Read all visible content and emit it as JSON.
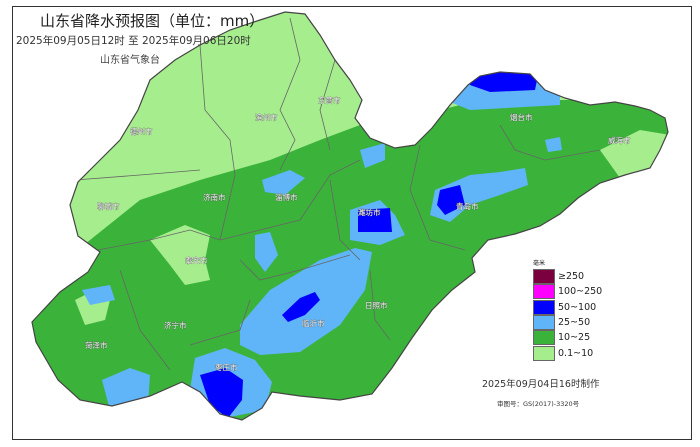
{
  "title": "山东省降水预报图（单位：mm）",
  "period": "2025年09月05日12时  至  2025年09月06日20时",
  "agency": "山东省气象台",
  "cities": [
    "德州市",
    "滨州市",
    "东营市",
    "聊城市",
    "济南市",
    "淄博市",
    "潍坊市",
    "泰安市",
    "烟台市",
    "威海市",
    "青岛市",
    "日照市",
    "临沂市",
    "济宁市",
    "菏泽市",
    "枣庄市"
  ],
  "legend": {
    "unit": "毫米",
    "items": [
      {
        "label": "≥250",
        "color": "#7a0040"
      },
      {
        "label": "100~250",
        "color": "#ff00ff"
      },
      {
        "label": "50~100",
        "color": "#0000ff"
      },
      {
        "label": "25~50",
        "color": "#60b4f8"
      },
      {
        "label": "10~25",
        "color": "#3bb33b"
      },
      {
        "label": "0.1~10",
        "color": "#a6ed8e"
      }
    ]
  },
  "made_time": "2025年09月04日16时制作",
  "review_no": "审图号：GS(2017)-3320号"
}
